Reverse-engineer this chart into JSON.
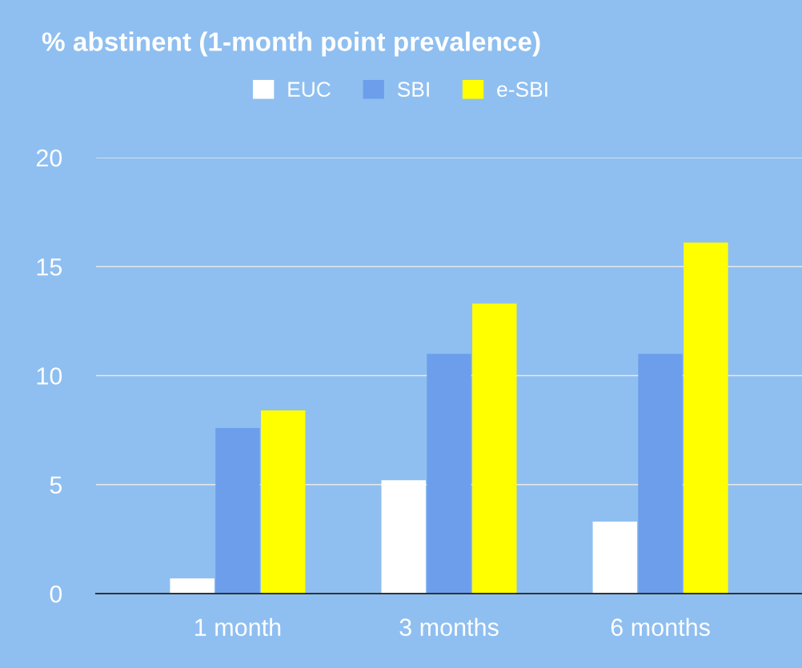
{
  "chart_data": {
    "type": "bar",
    "title": "% abstinent (1-month point prevalence)",
    "categories": [
      "1 month",
      "3 months",
      "6 months"
    ],
    "series": [
      {
        "name": "EUC",
        "color": "#ffffff",
        "values": [
          0.7,
          5.2,
          3.3
        ]
      },
      {
        "name": "SBI",
        "color": "#6d9eeb",
        "values": [
          7.6,
          11,
          11
        ]
      },
      {
        "name": "e-SBI",
        "color": "#ffff00",
        "values": [
          8.4,
          13.3,
          16.1
        ]
      }
    ],
    "ylim": [
      0,
      20
    ],
    "yticks": [
      0,
      5,
      10,
      15,
      20
    ],
    "grid": "y",
    "legend": "top"
  }
}
